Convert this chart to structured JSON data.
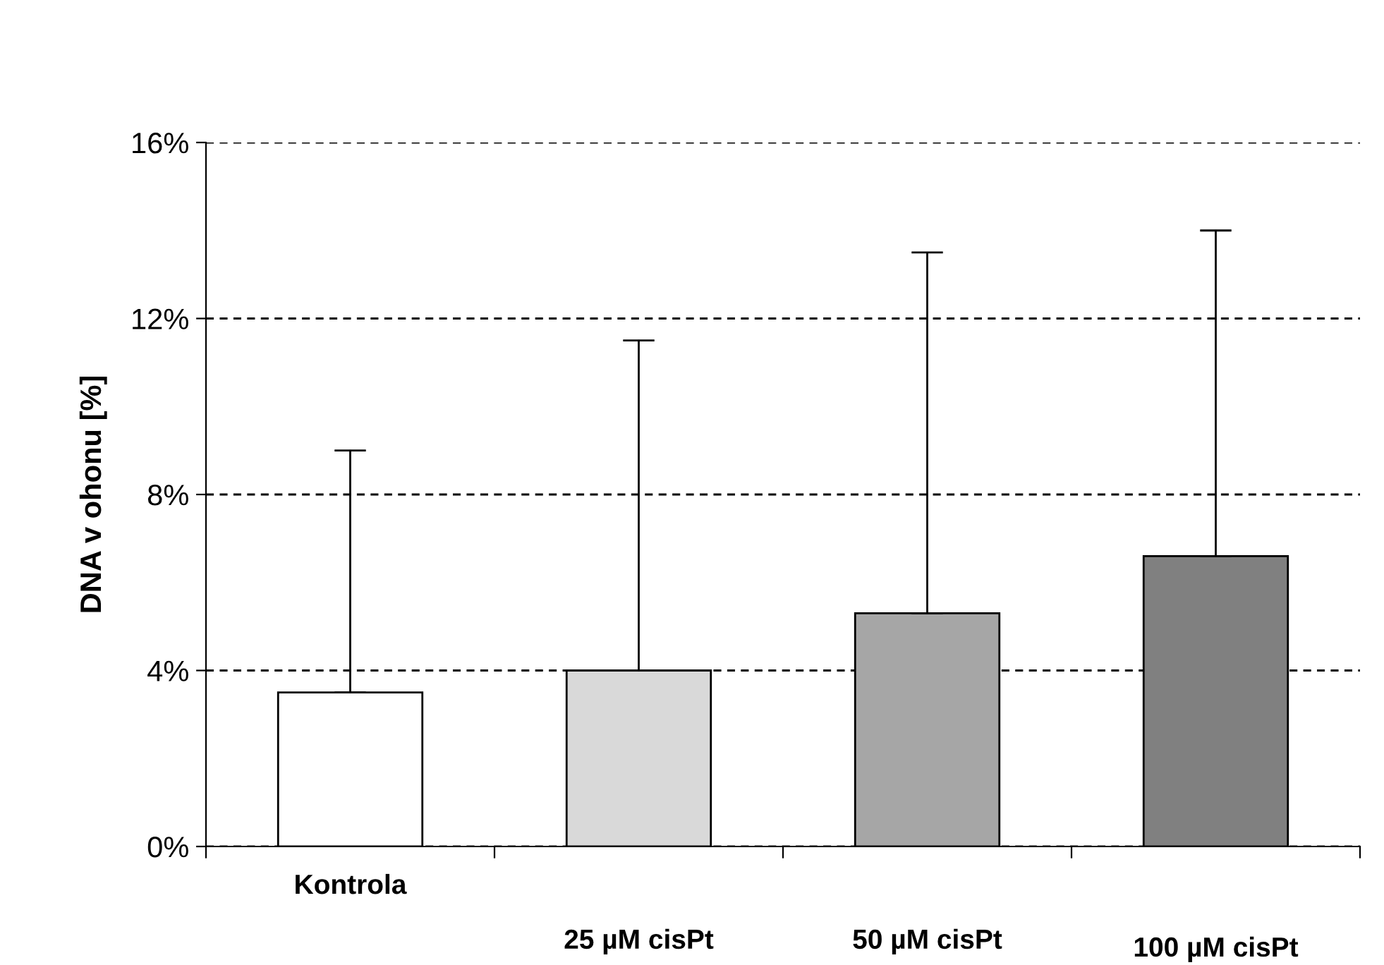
{
  "chart_data": {
    "type": "bar",
    "ylabel": "DNA v ohonu [%]",
    "categories": [
      "Kontrola",
      "25 µM cisPt",
      "50 µM cisPt",
      "100 µM cisPt"
    ],
    "values": [
      3.5,
      4.0,
      5.3,
      6.6
    ],
    "colors": [
      "#ffffff",
      "#d9d9d9",
      "#a6a6a6",
      "#808080"
    ],
    "errors": [
      [
        3.5,
        9.0
      ],
      [
        4.0,
        11.5
      ],
      [
        5.3,
        13.5
      ],
      [
        6.6,
        14.0
      ]
    ],
    "ylim": [
      0,
      16
    ],
    "yticks": [
      {
        "value": 0,
        "label": "0%"
      },
      {
        "value": 4,
        "label": "4%"
      },
      {
        "value": 8,
        "label": "8%"
      },
      {
        "value": 12,
        "label": "12%"
      },
      {
        "value": 16,
        "label": "16%"
      }
    ],
    "grid": "y",
    "line_style": "dashed",
    "legend": false
  }
}
